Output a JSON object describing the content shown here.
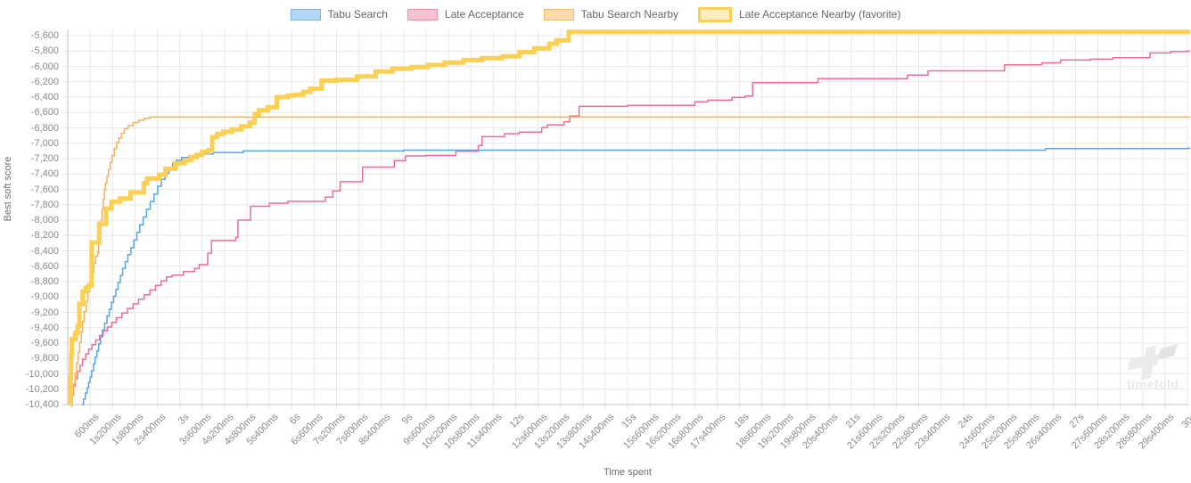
{
  "chart_data": {
    "type": "line",
    "title": "",
    "xlabel": "Time spent",
    "ylabel": "Best soft score",
    "legend_position": "top",
    "grid": true,
    "x_axis": {
      "max_ms": 30000,
      "tick_ms": [
        600,
        1200,
        1800,
        2400,
        3000,
        3600,
        4200,
        4800,
        5400,
        6000,
        6600,
        7200,
        7800,
        8400,
        9000,
        9600,
        10200,
        10800,
        11400,
        12000,
        12600,
        13200,
        13800,
        14400,
        15000,
        15600,
        16200,
        16800,
        17400,
        18000,
        18600,
        19200,
        19800,
        20400,
        21000,
        21600,
        22200,
        22800,
        23400,
        24000,
        24600,
        25200,
        25800,
        26400,
        27000,
        27600,
        28200,
        28800,
        29400,
        30000
      ],
      "tick_labels": [
        "600ms",
        "1s200ms",
        "1s800ms",
        "2s400ms",
        "3s",
        "3s600ms",
        "4s200ms",
        "4s800ms",
        "5s400ms",
        "6s",
        "6s600ms",
        "7s200ms",
        "7s800ms",
        "8s400ms",
        "9s",
        "9s600ms",
        "10s200ms",
        "10s800ms",
        "11s400ms",
        "12s",
        "12s600ms",
        "13s200ms",
        "13s800ms",
        "14s400ms",
        "15s",
        "15s600ms",
        "16s200ms",
        "16s800ms",
        "17s400ms",
        "18s",
        "18s600ms",
        "19s200ms",
        "19s800ms",
        "20s400ms",
        "21s",
        "21s600ms",
        "22s200ms",
        "22s800ms",
        "23s400ms",
        "24s",
        "24s600ms",
        "25s200ms",
        "25s800ms",
        "26s400ms",
        "27s",
        "27s600ms",
        "28s200ms",
        "28s800ms",
        "29s400ms",
        "30s"
      ]
    },
    "y_axis": {
      "tick_values": [
        -5600,
        -5800,
        -6000,
        -6200,
        -6400,
        -6600,
        -6800,
        -7000,
        -7200,
        -7400,
        -7600,
        -7800,
        -8000,
        -8200,
        -8400,
        -8600,
        -8800,
        -9000,
        -9200,
        -9400,
        -9600,
        -9800,
        -10000,
        -10200,
        -10400
      ],
      "tick_labels": [
        "-5,600",
        "-5,800",
        "-6,000",
        "-6,200",
        "-6,400",
        "-6,600",
        "-6,800",
        "-7,000",
        "-7,200",
        "-7,400",
        "-7,600",
        "-7,800",
        "-8,000",
        "-8,200",
        "-8,400",
        "-8,600",
        "-8,800",
        "-9,000",
        "-9,200",
        "-9,400",
        "-9,600",
        "-9,800",
        "-10,000",
        "-10,200",
        "-10,400"
      ]
    },
    "colors": {
      "background": "#ffffff",
      "grid": "#e8e8e8",
      "axis_border": "#c4c4c4",
      "tick_text": "#8b8b8b",
      "axis_title_text": "#6d6d6d",
      "legend_text": "#666666"
    },
    "series": [
      {
        "name": "Tabu Search",
        "line_color": "#5aa5e6",
        "legend_fill": "#b4d8f3",
        "legend_border": "#79b7ea",
        "legend_border_width": 1,
        "line_width": 1.5,
        "favorite": false,
        "points_ms_score": [
          [
            380,
            -10400
          ],
          [
            420,
            -10330
          ],
          [
            470,
            -10250
          ],
          [
            520,
            -10180
          ],
          [
            560,
            -10110
          ],
          [
            600,
            -10040
          ],
          [
            640,
            -9960
          ],
          [
            690,
            -9870
          ],
          [
            730,
            -9780
          ],
          [
            780,
            -9700
          ],
          [
            830,
            -9610
          ],
          [
            880,
            -9520
          ],
          [
            930,
            -9430
          ],
          [
            990,
            -9340
          ],
          [
            1050,
            -9250
          ],
          [
            1110,
            -9160
          ],
          [
            1170,
            -9070
          ],
          [
            1230,
            -8990
          ],
          [
            1290,
            -8900
          ],
          [
            1350,
            -8810
          ],
          [
            1410,
            -8720
          ],
          [
            1470,
            -8630
          ],
          [
            1540,
            -8540
          ],
          [
            1610,
            -8450
          ],
          [
            1690,
            -8360
          ],
          [
            1770,
            -8260
          ],
          [
            1850,
            -8160
          ],
          [
            1930,
            -8060
          ],
          [
            2020,
            -7960
          ],
          [
            2110,
            -7860
          ],
          [
            2210,
            -7760
          ],
          [
            2310,
            -7660
          ],
          [
            2410,
            -7560
          ],
          [
            2510,
            -7470
          ],
          [
            2610,
            -7390
          ],
          [
            2710,
            -7320
          ],
          [
            2810,
            -7260
          ],
          [
            2910,
            -7220
          ],
          [
            3050,
            -7185
          ],
          [
            3250,
            -7160
          ],
          [
            3500,
            -7140
          ],
          [
            3900,
            -7120
          ],
          [
            4700,
            -7100
          ],
          [
            9000,
            -7090
          ],
          [
            26200,
            -7070
          ],
          [
            30000,
            -7065
          ]
        ]
      },
      {
        "name": "Late Acceptance",
        "line_color": "#ee6e99",
        "legend_fill": "#f8c2d1",
        "legend_border": "#f28fae",
        "legend_border_width": 1,
        "line_width": 1.5,
        "favorite": false,
        "points_ms_score": [
          [
            80,
            -10400
          ],
          [
            120,
            -10280
          ],
          [
            160,
            -10160
          ],
          [
            200,
            -10060
          ],
          [
            260,
            -9970
          ],
          [
            330,
            -9890
          ],
          [
            400,
            -9810
          ],
          [
            480,
            -9740
          ],
          [
            560,
            -9680
          ],
          [
            650,
            -9620
          ],
          [
            750,
            -9560
          ],
          [
            850,
            -9500
          ],
          [
            950,
            -9440
          ],
          [
            1060,
            -9390
          ],
          [
            1180,
            -9330
          ],
          [
            1300,
            -9270
          ],
          [
            1450,
            -9210
          ],
          [
            1600,
            -9150
          ],
          [
            1750,
            -9090
          ],
          [
            1900,
            -9030
          ],
          [
            2050,
            -8970
          ],
          [
            2200,
            -8910
          ],
          [
            2350,
            -8850
          ],
          [
            2500,
            -8790
          ],
          [
            2650,
            -8740
          ],
          [
            2800,
            -8715
          ],
          [
            3100,
            -8670
          ],
          [
            3400,
            -8630
          ],
          [
            3520,
            -8580
          ],
          [
            3750,
            -8430
          ],
          [
            3850,
            -8265
          ],
          [
            4500,
            -8225
          ],
          [
            4560,
            -8000
          ],
          [
            4900,
            -7820
          ],
          [
            5400,
            -7780
          ],
          [
            5900,
            -7755
          ],
          [
            6900,
            -7700
          ],
          [
            7100,
            -7620
          ],
          [
            7300,
            -7500
          ],
          [
            7900,
            -7310
          ],
          [
            8750,
            -7225
          ],
          [
            9050,
            -7165
          ],
          [
            9600,
            -7158
          ],
          [
            10400,
            -7105
          ],
          [
            11000,
            -7030
          ],
          [
            11100,
            -6915
          ],
          [
            11700,
            -6875
          ],
          [
            12100,
            -6855
          ],
          [
            12700,
            -6795
          ],
          [
            12850,
            -6760
          ],
          [
            13300,
            -6720
          ],
          [
            13450,
            -6645
          ],
          [
            13700,
            -6520
          ],
          [
            15000,
            -6508
          ],
          [
            16800,
            -6462
          ],
          [
            17150,
            -6440
          ],
          [
            17800,
            -6403
          ],
          [
            18150,
            -6386
          ],
          [
            18350,
            -6212
          ],
          [
            20100,
            -6160
          ],
          [
            22500,
            -6112
          ],
          [
            23050,
            -6058
          ],
          [
            25100,
            -5980
          ],
          [
            26100,
            -5954
          ],
          [
            26600,
            -5918
          ],
          [
            27400,
            -5906
          ],
          [
            28000,
            -5886
          ],
          [
            29000,
            -5825
          ],
          [
            29550,
            -5808
          ],
          [
            30000,
            -5800
          ]
        ]
      },
      {
        "name": "Tabu Search Nearby",
        "line_color": "#f8b05c",
        "legend_fill": "#fcdcaa",
        "legend_border": "#f9b763",
        "legend_border_width": 1,
        "line_width": 1.5,
        "favorite": false,
        "points_ms_score": [
          [
            80,
            -10400
          ],
          [
            120,
            -10270
          ],
          [
            160,
            -10130
          ],
          [
            200,
            -9990
          ],
          [
            240,
            -9860
          ],
          [
            280,
            -9720
          ],
          [
            320,
            -9590
          ],
          [
            360,
            -9450
          ],
          [
            400,
            -9320
          ],
          [
            440,
            -9190
          ],
          [
            490,
            -9060
          ],
          [
            540,
            -8930
          ],
          [
            590,
            -8800
          ],
          [
            640,
            -8680
          ],
          [
            700,
            -8560
          ],
          [
            750,
            -8470
          ],
          [
            800,
            -8420
          ],
          [
            830,
            -8300
          ],
          [
            860,
            -8150
          ],
          [
            890,
            -8000
          ],
          [
            920,
            -7860
          ],
          [
            950,
            -7730
          ],
          [
            980,
            -7610
          ],
          [
            1010,
            -7520
          ],
          [
            1050,
            -7430
          ],
          [
            1090,
            -7340
          ],
          [
            1140,
            -7250
          ],
          [
            1190,
            -7160
          ],
          [
            1250,
            -7070
          ],
          [
            1310,
            -6990
          ],
          [
            1370,
            -6930
          ],
          [
            1440,
            -6870
          ],
          [
            1520,
            -6810
          ],
          [
            1620,
            -6770
          ],
          [
            1750,
            -6730
          ],
          [
            1900,
            -6700
          ],
          [
            2050,
            -6675
          ],
          [
            2200,
            -6660
          ],
          [
            30000,
            -6660
          ]
        ]
      },
      {
        "name": "Late Acceptance Nearby (favorite)",
        "line_color": "#fccf55",
        "legend_fill": "#fdeec2",
        "legend_border": "#fccf55",
        "legend_border_width": 3,
        "line_width": 5,
        "favorite": true,
        "points_ms_score": [
          [
            60,
            -10400
          ],
          [
            75,
            -10050
          ],
          [
            90,
            -9750
          ],
          [
            110,
            -9550
          ],
          [
            200,
            -9470
          ],
          [
            260,
            -9380
          ],
          [
            310,
            -9090
          ],
          [
            400,
            -8930
          ],
          [
            480,
            -8880
          ],
          [
            560,
            -8850
          ],
          [
            640,
            -8290
          ],
          [
            840,
            -8050
          ],
          [
            1030,
            -7850
          ],
          [
            1170,
            -7760
          ],
          [
            1400,
            -7720
          ],
          [
            1680,
            -7640
          ],
          [
            2040,
            -7520
          ],
          [
            2120,
            -7460
          ],
          [
            2450,
            -7410
          ],
          [
            2620,
            -7330
          ],
          [
            2880,
            -7260
          ],
          [
            3130,
            -7220
          ],
          [
            3300,
            -7180
          ],
          [
            3450,
            -7150
          ],
          [
            3600,
            -7110
          ],
          [
            3770,
            -7090
          ],
          [
            3870,
            -6920
          ],
          [
            4000,
            -6880
          ],
          [
            4170,
            -6850
          ],
          [
            4400,
            -6820
          ],
          [
            4650,
            -6780
          ],
          [
            4880,
            -6730
          ],
          [
            5010,
            -6620
          ],
          [
            5120,
            -6570
          ],
          [
            5360,
            -6530
          ],
          [
            5600,
            -6400
          ],
          [
            5900,
            -6380
          ],
          [
            6080,
            -6370
          ],
          [
            6310,
            -6330
          ],
          [
            6500,
            -6290
          ],
          [
            6800,
            -6185
          ],
          [
            7200,
            -6175
          ],
          [
            7750,
            -6130
          ],
          [
            8250,
            -6065
          ],
          [
            8700,
            -6030
          ],
          [
            9200,
            -6008
          ],
          [
            9650,
            -5982
          ],
          [
            10100,
            -5950
          ],
          [
            10600,
            -5918
          ],
          [
            11100,
            -5893
          ],
          [
            11650,
            -5868
          ],
          [
            12100,
            -5815
          ],
          [
            12500,
            -5765
          ],
          [
            12900,
            -5705
          ],
          [
            13100,
            -5660
          ],
          [
            13420,
            -5550
          ],
          [
            30000,
            -5550
          ]
        ]
      }
    ]
  },
  "watermark": {
    "text": "timefold"
  }
}
